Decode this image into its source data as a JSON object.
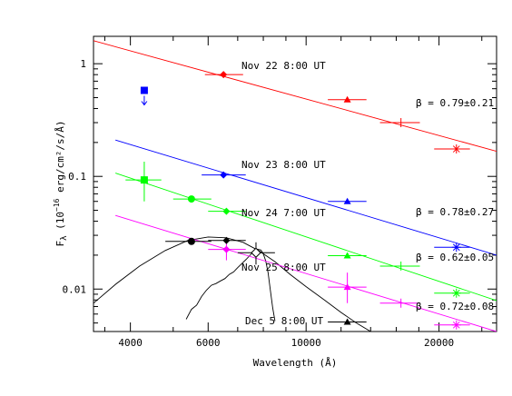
{
  "chart_data": {
    "type": "scatter",
    "x_scale": "log",
    "y_scale": "log",
    "xlim": [
      3300,
      27000
    ],
    "ylim": [
      0.0042,
      1.75
    ],
    "xlabel": "Wavelength (Å)",
    "ylabel_main": "F",
    "ylabel_sub": "λ",
    "ylabel_units": " (10",
    "ylabel_exp": "−16",
    "ylabel_units2": " erg/cm²/s/Å)",
    "x_ticks": [
      {
        "value": 4000,
        "label": "4000"
      },
      {
        "value": 6000,
        "label": "6000"
      },
      {
        "value": 10000,
        "label": "10000"
      },
      {
        "value": 20000,
        "label": "20000"
      }
    ],
    "x_minor_ticks": [
      3500,
      5000,
      7000,
      8000,
      9000,
      12000,
      14000,
      16000,
      18000,
      25000
    ],
    "y_ticks": [
      {
        "value": 0.01,
        "label": "0.01"
      },
      {
        "value": 0.1,
        "label": "0.1"
      },
      {
        "value": 1,
        "label": "1"
      }
    ],
    "y_minor_ticks": [
      0.005,
      0.006,
      0.007,
      0.008,
      0.009,
      0.02,
      0.03,
      0.04,
      0.05,
      0.06,
      0.07,
      0.08,
      0.09,
      0.2,
      0.3,
      0.4,
      0.5,
      0.6,
      0.7,
      0.8,
      0.9
    ],
    "series": [
      {
        "name": "Nov 22 8:00 UT",
        "color": "#ff0000",
        "beta_label": "β = 0.79±0.21",
        "fit": [
          [
            3300,
            1.6
          ],
          [
            27000,
            0.167
          ]
        ],
        "points": [
          {
            "x": 6500,
            "y": 0.8,
            "xerr": [
              5900,
              7200
            ],
            "marker": "diamond"
          },
          {
            "x": 12400,
            "y": 0.48,
            "xerr": [
              11200,
              13700
            ],
            "marker": "triangle"
          },
          {
            "x": 16400,
            "y": 0.3,
            "xerr": [
              14700,
              18100
            ],
            "marker": "plus"
          },
          {
            "x": 21900,
            "y": 0.175,
            "xerr": [
              19500,
              23500
            ],
            "marker": "asterisk"
          }
        ]
      },
      {
        "name": "Nov 23 8:00 UT",
        "color": "#0000ff",
        "beta_label": "β = 0.78±0.27",
        "fit": [
          [
            3700,
            0.21
          ],
          [
            27000,
            0.02
          ]
        ],
        "points": [
          {
            "x": 4300,
            "y": 0.58,
            "marker": "square",
            "upper_limit": true
          },
          {
            "x": 6500,
            "y": 0.103,
            "xerr": [
              5800,
              7300
            ],
            "marker": "diamond"
          },
          {
            "x": 12400,
            "y": 0.06,
            "xerr": [
              11200,
              13700
            ],
            "marker": "triangle"
          },
          {
            "x": 21900,
            "y": 0.0235,
            "xerr": [
              19500,
              23500
            ],
            "marker": "asterisk"
          }
        ]
      },
      {
        "name": "Nov 24 7:00 UT",
        "color": "#00ff00",
        "beta_label": "β = 0.62±0.05",
        "fit": [
          [
            3700,
            0.107
          ],
          [
            27000,
            0.0079
          ]
        ],
        "points": [
          {
            "x": 4300,
            "y": 0.093,
            "xerr": [
              3900,
              4700
            ],
            "yerr": [
              0.06,
              0.135
            ],
            "marker": "square"
          },
          {
            "x": 5500,
            "y": 0.063,
            "xerr": [
              5000,
              6100
            ],
            "marker": "circle"
          },
          {
            "x": 6600,
            "y": 0.049,
            "xerr": [
              6000,
              7300
            ],
            "marker": "diamond"
          },
          {
            "x": 12400,
            "y": 0.0198,
            "xerr": [
              11200,
              13700
            ],
            "marker": "triangle"
          },
          {
            "x": 16400,
            "y": 0.016,
            "xerr": [
              14700,
              18100
            ],
            "marker": "plus"
          },
          {
            "x": 21900,
            "y": 0.0092,
            "xerr": [
              19500,
              23500
            ],
            "marker": "asterisk"
          }
        ]
      },
      {
        "name": "Nov 25 8:00 UT",
        "color": "#ff00ff",
        "beta_label": "β = 0.72±0.08",
        "fit": [
          [
            3700,
            0.045
          ],
          [
            27000,
            0.0042
          ]
        ],
        "points": [
          {
            "x": 6600,
            "y": 0.0225,
            "xerr": [
              6000,
              7300
            ],
            "yerr": [
              0.018,
              0.028
            ],
            "marker": "diamond"
          },
          {
            "x": 12400,
            "y": 0.0104,
            "xerr": [
              11200,
              13700
            ],
            "yerr": [
              0.0075,
              0.014
            ],
            "marker": "triangle"
          },
          {
            "x": 16400,
            "y": 0.0075,
            "xerr": [
              14700,
              18100
            ],
            "marker": "plus"
          },
          {
            "x": 21900,
            "y": 0.0048,
            "xerr": [
              19500,
              23500
            ],
            "marker": "asterisk"
          }
        ]
      },
      {
        "name": "Dec 5 8:00 UT",
        "color": "#000000",
        "points": [
          {
            "x": 5500,
            "y": 0.0265,
            "xerr": [
              4800,
              6100
            ],
            "marker": "circle"
          },
          {
            "x": 6600,
            "y": 0.027,
            "xerr": [
              6000,
              7300
            ],
            "marker": "diamond"
          },
          {
            "x": 7700,
            "y": 0.021,
            "xerr": [
              7000,
              8500
            ],
            "yerr": [
              0.0165,
              0.026
            ],
            "marker": "open-diamond"
          },
          {
            "x": 12400,
            "y": 0.0051,
            "xerr": [
              11200,
              13700
            ],
            "marker": "triangle"
          }
        ]
      }
    ],
    "model_curves": [
      {
        "name": "smooth-model",
        "color": "#000000",
        "points": [
          [
            3300,
            0.0075
          ],
          [
            3700,
            0.011
          ],
          [
            4200,
            0.016
          ],
          [
            4800,
            0.022
          ],
          [
            5400,
            0.027
          ],
          [
            6000,
            0.029
          ],
          [
            6600,
            0.0285
          ],
          [
            7200,
            0.026
          ],
          [
            7800,
            0.022
          ],
          [
            8500,
            0.0175
          ],
          [
            9200,
            0.0135
          ],
          [
            10000,
            0.0105
          ],
          [
            11000,
            0.008
          ],
          [
            12000,
            0.0062
          ],
          [
            13000,
            0.005
          ],
          [
            14000,
            0.0042
          ]
        ]
      },
      {
        "name": "spectrum",
        "color": "#000000",
        "points": [
          [
            5350,
            0.0054
          ],
          [
            5500,
            0.0066
          ],
          [
            5650,
            0.0072
          ],
          [
            5800,
            0.0086
          ],
          [
            5950,
            0.0098
          ],
          [
            6100,
            0.0108
          ],
          [
            6250,
            0.0112
          ],
          [
            6400,
            0.0118
          ],
          [
            6550,
            0.0124
          ],
          [
            6700,
            0.0135
          ],
          [
            6850,
            0.0142
          ],
          [
            7000,
            0.0155
          ],
          [
            7150,
            0.0168
          ],
          [
            7300,
            0.0182
          ],
          [
            7450,
            0.0198
          ],
          [
            7600,
            0.0215
          ],
          [
            7750,
            0.0226
          ],
          [
            7900,
            0.0222
          ],
          [
            8000,
            0.0205
          ],
          [
            8100,
            0.0178
          ],
          [
            8200,
            0.014
          ],
          [
            8300,
            0.0098
          ],
          [
            8400,
            0.0068
          ],
          [
            8500,
            0.0052
          ]
        ]
      }
    ]
  }
}
